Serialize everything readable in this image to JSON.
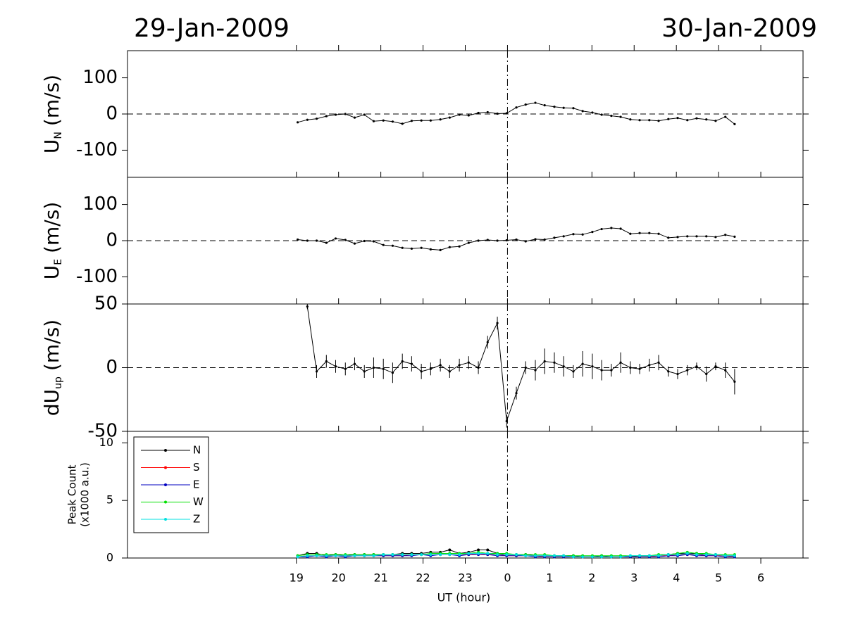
{
  "dates": [
    "29-Jan-2009",
    "30-Jan-2009"
  ],
  "chart_data": [
    {
      "type": "line",
      "ylabel": {
        "main": "U",
        "sub": "N",
        "unit": "(m/s)"
      },
      "xlim": [
        15,
        31
      ],
      "ylim": [
        -175,
        175
      ],
      "yticks": [
        -100,
        0,
        100
      ],
      "hline": 0,
      "vline": 24,
      "color": "#000000",
      "x": [
        19.03,
        19.26,
        19.48,
        19.71,
        19.93,
        20.16,
        20.38,
        20.61,
        20.83,
        21.06,
        21.28,
        21.51,
        21.73,
        21.96,
        22.18,
        22.41,
        22.63,
        22.86,
        23.08,
        23.31,
        23.53,
        23.76,
        23.98,
        24.21,
        24.43,
        24.66,
        24.88,
        25.11,
        25.33,
        25.56,
        25.78,
        26.01,
        26.23,
        26.46,
        26.68,
        26.91,
        27.13,
        27.36,
        27.58,
        27.81,
        28.03,
        28.26,
        28.48,
        28.71,
        28.93,
        29.16,
        29.38
      ],
      "values": [
        -23,
        -16,
        -13,
        -6,
        -2,
        0,
        -10,
        -2,
        -20,
        -18,
        -21,
        -27,
        -19,
        -18,
        -18,
        -15,
        -10,
        -2,
        -4,
        3,
        5,
        1,
        2,
        18,
        26,
        31,
        24,
        20,
        17,
        16,
        8,
        4,
        -2,
        -5,
        -8,
        -15,
        -17,
        -17,
        -19,
        -14,
        -11,
        -17,
        -12,
        -15,
        -19,
        -8,
        -28
      ]
    },
    {
      "type": "line",
      "ylabel": {
        "main": "U",
        "sub": "E",
        "unit": "(m/s)"
      },
      "xlim": [
        15,
        31
      ],
      "ylim": [
        -175,
        175
      ],
      "yticks": [
        -100,
        0,
        100
      ],
      "hline": 0,
      "vline": 24,
      "color": "#000000",
      "x": [
        19.03,
        19.26,
        19.48,
        19.71,
        19.93,
        20.16,
        20.38,
        20.61,
        20.83,
        21.06,
        21.28,
        21.51,
        21.73,
        21.96,
        22.18,
        22.41,
        22.63,
        22.86,
        23.08,
        23.31,
        23.53,
        23.76,
        23.98,
        24.21,
        24.43,
        24.66,
        24.88,
        25.11,
        25.33,
        25.56,
        25.78,
        26.01,
        26.23,
        26.46,
        26.68,
        26.91,
        27.13,
        27.36,
        27.58,
        27.81,
        28.03,
        28.26,
        28.48,
        28.71,
        28.93,
        29.16,
        29.38
      ],
      "values": [
        3,
        0,
        0,
        -6,
        6,
        2,
        -8,
        -1,
        -2,
        -12,
        -14,
        -20,
        -22,
        -20,
        -24,
        -26,
        -18,
        -16,
        -6,
        0,
        2,
        0,
        1,
        3,
        -2,
        4,
        3,
        8,
        12,
        18,
        17,
        24,
        32,
        35,
        33,
        19,
        21,
        21,
        19,
        8,
        10,
        12,
        12,
        12,
        10,
        16,
        11
      ]
    },
    {
      "type": "line",
      "ylabel": {
        "main": "dU",
        "sub": "up",
        "unit": "(m/s)"
      },
      "xlim": [
        15,
        31
      ],
      "ylim": [
        -50,
        50
      ],
      "yticks": [
        -50,
        0,
        50
      ],
      "hline": 0,
      "vline": 24,
      "color": "#000000",
      "x": [
        19.03,
        19.26,
        19.48,
        19.71,
        19.93,
        20.16,
        20.38,
        20.61,
        20.83,
        21.06,
        21.28,
        21.51,
        21.73,
        21.96,
        22.18,
        22.41,
        22.63,
        22.86,
        23.08,
        23.31,
        23.53,
        23.76,
        23.98,
        24.21,
        24.43,
        24.66,
        24.88,
        25.11,
        25.33,
        25.56,
        25.78,
        26.01,
        26.23,
        26.46,
        26.68,
        26.91,
        27.13,
        27.36,
        27.58,
        27.81,
        28.03,
        28.26,
        28.48,
        28.71,
        28.93,
        29.16,
        29.38
      ],
      "values": [
        null,
        48,
        -3,
        5,
        1,
        -1,
        3,
        -3,
        0,
        -1,
        -4,
        5,
        3,
        -3,
        -1,
        2,
        -3,
        2,
        4,
        0,
        20,
        35,
        -42,
        -20,
        0,
        -2,
        5,
        4,
        1,
        -3,
        3,
        1,
        -2,
        -2,
        4,
        0,
        -1,
        2,
        4,
        -3,
        -5,
        -2,
        1,
        -5,
        1,
        -2,
        -11
      ],
      "errors": [
        null,
        2,
        5,
        5,
        5,
        5,
        5,
        5,
        8,
        8,
        8,
        6,
        6,
        6,
        5,
        5,
        5,
        5,
        5,
        5,
        5,
        5,
        5,
        5,
        5,
        8,
        10,
        8,
        8,
        5,
        10,
        10,
        8,
        5,
        8,
        5,
        4,
        5,
        6,
        4,
        4,
        4,
        3,
        6,
        3,
        6,
        10
      ]
    },
    {
      "type": "line",
      "ylabel": [
        "Peak Count",
        "(x1000 a.u.)"
      ],
      "xlabel": "UT (hour)",
      "xlim": [
        15,
        31
      ],
      "ylim": [
        0,
        11
      ],
      "yticks": [
        0,
        5,
        10
      ],
      "vline": 24,
      "legend": "upper left",
      "xticks": [
        19,
        20,
        21,
        22,
        23,
        {
          "value": 24,
          "label": "0"
        },
        {
          "value": 25,
          "label": "1"
        },
        {
          "value": 26,
          "label": "2"
        },
        {
          "value": 27,
          "label": "3"
        },
        {
          "value": 28,
          "label": "4"
        },
        {
          "value": 29,
          "label": "5"
        },
        {
          "value": 30,
          "label": "6"
        }
      ],
      "x": [
        19.03,
        19.26,
        19.48,
        19.71,
        19.93,
        20.16,
        20.38,
        20.61,
        20.83,
        21.06,
        21.28,
        21.51,
        21.73,
        21.96,
        22.18,
        22.41,
        22.63,
        22.86,
        23.08,
        23.31,
        23.53,
        23.76,
        23.98,
        24.21,
        24.43,
        24.66,
        24.88,
        25.11,
        25.33,
        25.56,
        25.78,
        26.01,
        26.23,
        26.46,
        26.68,
        26.91,
        27.13,
        27.36,
        27.58,
        27.81,
        28.03,
        28.26,
        28.48,
        28.71,
        28.93,
        29.16,
        29.38
      ],
      "series": [
        {
          "name": "N",
          "color": "#000000",
          "values": [
            0.2,
            0.4,
            0.4,
            0.2,
            0.3,
            0.2,
            0.3,
            0.3,
            0.3,
            0.3,
            0.3,
            0.4,
            0.4,
            0.4,
            0.5,
            0.5,
            0.7,
            0.4,
            0.5,
            0.7,
            0.7,
            0.4,
            0.3,
            0.3,
            0.3,
            0.2,
            0.2,
            0.2,
            0.2,
            0.2,
            0.1,
            0.1,
            0.2,
            0.1,
            0.1,
            0.1,
            0.2,
            0.2,
            0.2,
            0.3,
            0.4,
            0.4,
            0.4,
            0.3,
            0.3,
            0.2,
            0.2
          ]
        },
        {
          "name": "S",
          "color": "#ff0000",
          "values": [
            0.1,
            0.2,
            0.2,
            0.2,
            0.2,
            0.2,
            0.2,
            0.2,
            0.2,
            0.2,
            0.2,
            0.2,
            0.3,
            0.3,
            0.3,
            0.3,
            0.3,
            0.3,
            0.3,
            0.4,
            0.3,
            0.3,
            0.2,
            0.2,
            0.2,
            0.2,
            0.1,
            0.1,
            0.1,
            0.1,
            0.1,
            0.1,
            0.1,
            0.1,
            0.1,
            0.1,
            0.1,
            0.1,
            0.2,
            0.2,
            0.3,
            0.3,
            0.3,
            0.2,
            0.2,
            0.2,
            0.1
          ]
        },
        {
          "name": "E",
          "color": "#0000c0",
          "values": [
            0.1,
            0.1,
            0.2,
            0.1,
            0.2,
            0.1,
            0.2,
            0.2,
            0.2,
            0.2,
            0.2,
            0.2,
            0.2,
            0.3,
            0.2,
            0.3,
            0.3,
            0.2,
            0.3,
            0.3,
            0.3,
            0.2,
            0.2,
            0.2,
            0.2,
            0.1,
            0.1,
            0.1,
            0.1,
            0.1,
            0.1,
            0.1,
            0.1,
            0.1,
            0.1,
            0.1,
            0.1,
            0.1,
            0.1,
            0.2,
            0.2,
            0.3,
            0.2,
            0.2,
            0.2,
            0.1,
            0.1
          ]
        },
        {
          "name": "W",
          "color": "#00e000",
          "values": [
            0.2,
            0.3,
            0.3,
            0.3,
            0.3,
            0.3,
            0.3,
            0.3,
            0.3,
            0.3,
            0.3,
            0.3,
            0.3,
            0.3,
            0.4,
            0.4,
            0.4,
            0.4,
            0.4,
            0.5,
            0.4,
            0.4,
            0.4,
            0.3,
            0.3,
            0.3,
            0.3,
            0.2,
            0.2,
            0.2,
            0.2,
            0.2,
            0.2,
            0.2,
            0.2,
            0.2,
            0.2,
            0.2,
            0.3,
            0.3,
            0.4,
            0.5,
            0.4,
            0.4,
            0.3,
            0.3,
            0.3
          ]
        },
        {
          "name": "Z",
          "color": "#00e0e0",
          "values": [
            0.1,
            0.2,
            0.2,
            0.2,
            0.2,
            0.2,
            0.2,
            0.2,
            0.2,
            0.3,
            0.3,
            0.3,
            0.3,
            0.3,
            0.3,
            0.3,
            0.3,
            0.3,
            0.4,
            0.4,
            0.4,
            0.3,
            0.3,
            0.3,
            0.2,
            0.2,
            0.2,
            0.2,
            0.2,
            0.1,
            0.1,
            0.1,
            0.1,
            0.1,
            0.1,
            0.2,
            0.2,
            0.2,
            0.2,
            0.3,
            0.3,
            0.4,
            0.3,
            0.3,
            0.3,
            0.2,
            0.2
          ]
        }
      ]
    }
  ]
}
